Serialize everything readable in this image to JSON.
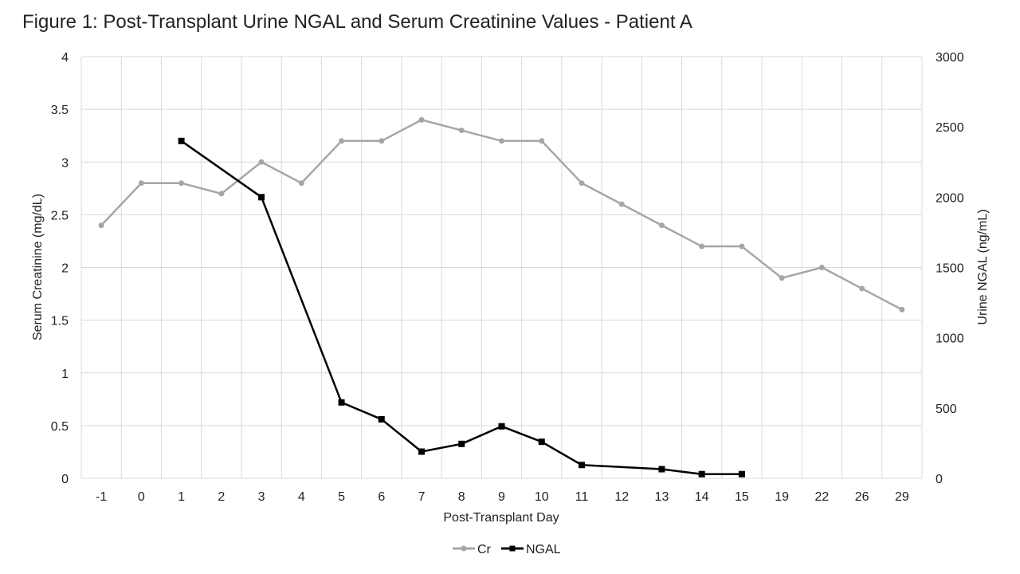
{
  "chart_data": {
    "type": "line",
    "title": "Figure 1: Post-Transplant Urine NGAL and Serum Creatinine Values - Patient A",
    "xlabel": "Post-Transplant Day",
    "ylabel": "Serum Creatinine (mg/dL)",
    "y2label": "Urine NGAL (ng/mL)",
    "categories": [
      "-1",
      "0",
      "1",
      "2",
      "3",
      "4",
      "5",
      "6",
      "7",
      "8",
      "9",
      "10",
      "11",
      "12",
      "13",
      "14",
      "15",
      "19",
      "22",
      "26",
      "29"
    ],
    "ylim": [
      0,
      4
    ],
    "y2lim": [
      0,
      3000
    ],
    "yticks": [
      "0",
      "0.5",
      "1",
      "1.5",
      "2",
      "2.5",
      "3",
      "3.5",
      "4"
    ],
    "y2ticks": [
      "0",
      "500",
      "1000",
      "1500",
      "2000",
      "2500",
      "3000"
    ],
    "grid": true,
    "legend_position": "bottom",
    "series": [
      {
        "name": "Cr",
        "axis": "left",
        "color": "#a6a6a6",
        "marker": "circle",
        "values": [
          2.4,
          2.8,
          2.8,
          2.7,
          3.0,
          2.8,
          3.2,
          3.2,
          3.4,
          3.3,
          3.2,
          3.2,
          2.8,
          2.6,
          2.4,
          2.2,
          2.2,
          1.9,
          2.0,
          1.8,
          1.6
        ]
      },
      {
        "name": "NGAL",
        "axis": "right",
        "color": "#000000",
        "marker": "square",
        "values": [
          null,
          null,
          2400,
          null,
          2000,
          null,
          540,
          420,
          190,
          245,
          370,
          260,
          95,
          null,
          65,
          30,
          30,
          null,
          null,
          null,
          null
        ]
      }
    ]
  }
}
